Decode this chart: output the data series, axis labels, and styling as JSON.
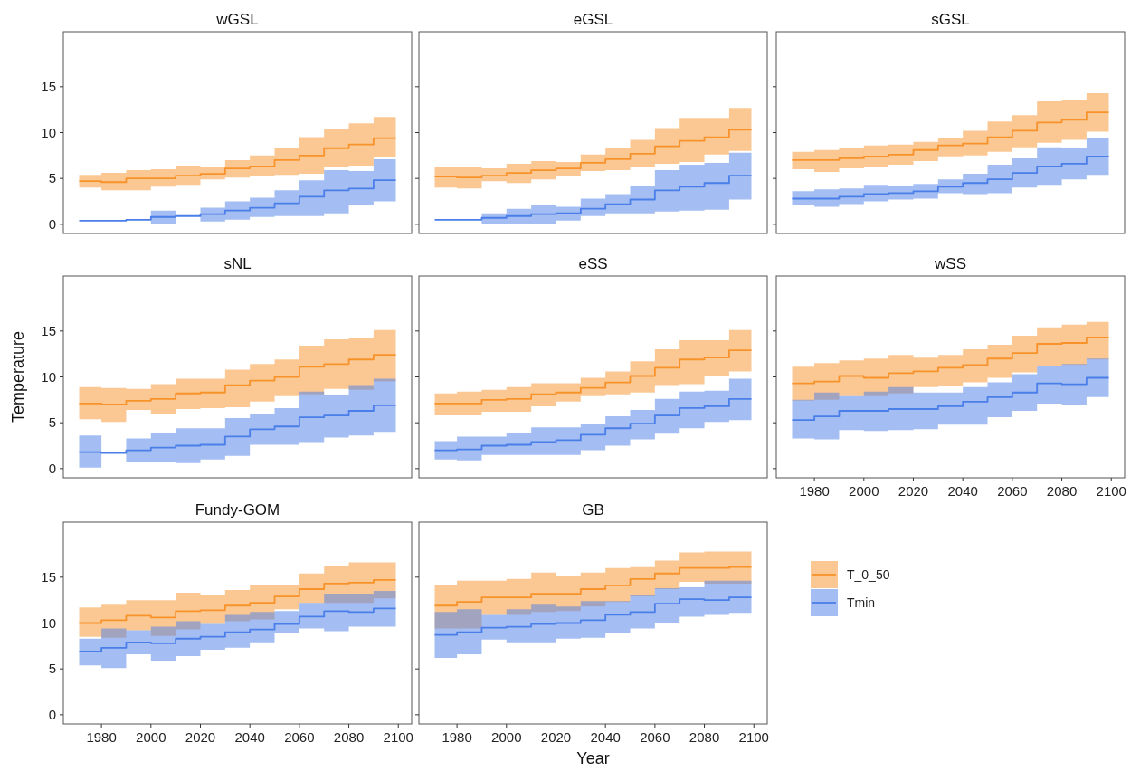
{
  "chart_data": [
    {
      "type": "step",
      "title": "wGSL",
      "legend": "bottom right",
      "x": [
        1971,
        1980,
        1990,
        2000,
        2010,
        2020,
        2030,
        2040,
        2050,
        2060,
        2070,
        2080,
        2090,
        2099
      ],
      "xlim": [
        1964.6,
        2105.4
      ],
      "ylim": [
        -1,
        21
      ],
      "xticks": [
        1980,
        2000,
        2020,
        2040,
        2060,
        2080,
        2100
      ],
      "yticks": [
        0,
        5,
        10,
        15
      ],
      "tick_labels": "y",
      "series": [
        {
          "name": "T_0_50",
          "color": "#f8922a",
          "values": [
            4.7,
            4.6,
            5.0,
            5.0,
            5.3,
            5.5,
            6.1,
            6.3,
            7.0,
            7.5,
            8.3,
            8.7,
            9.4,
            9.4
          ],
          "lower": [
            4.0,
            3.7,
            3.7,
            4.1,
            4.3,
            4.9,
            5.1,
            5.3,
            5.4,
            5.5,
            6.3,
            6.4,
            7.3,
            7.3
          ],
          "upper": [
            5.4,
            5.6,
            5.9,
            6.0,
            6.4,
            6.2,
            7.0,
            7.5,
            8.3,
            9.5,
            10.4,
            11.0,
            11.7,
            11.7
          ]
        },
        {
          "name": "Tmin",
          "color": "#4a7ee8",
          "values": [
            0.4,
            0.4,
            0.5,
            0.8,
            0.9,
            1.1,
            1.5,
            1.8,
            2.3,
            3.0,
            3.7,
            3.9,
            4.8,
            4.8
          ],
          "lower": [
            0.4,
            0.4,
            0.5,
            0.0,
            0.9,
            0.3,
            0.5,
            0.8,
            0.9,
            0.9,
            1.2,
            2.1,
            2.5,
            2.5
          ],
          "upper": [
            0.4,
            0.4,
            0.5,
            1.5,
            0.9,
            1.8,
            2.5,
            2.9,
            3.7,
            4.8,
            5.9,
            5.8,
            7.1,
            7.1
          ]
        }
      ]
    },
    {
      "type": "step",
      "title": "eGSL",
      "x": [
        1971,
        1980,
        1990,
        2000,
        2010,
        2020,
        2030,
        2040,
        2050,
        2060,
        2070,
        2080,
        2090,
        2099
      ],
      "xlim": [
        1964.6,
        2105.4
      ],
      "ylim": [
        -1,
        21
      ],
      "xticks": [
        1980,
        2000,
        2020,
        2040,
        2060,
        2080,
        2100
      ],
      "yticks": [
        0,
        5,
        10,
        15
      ],
      "tick_labels": false,
      "series": [
        {
          "color": "#f8922a",
          "values": [
            5.2,
            5.1,
            5.3,
            5.6,
            5.9,
            6.1,
            6.7,
            7.1,
            7.7,
            8.5,
            9.1,
            9.5,
            10.3,
            10.3
          ],
          "lower": [
            4.0,
            3.9,
            4.7,
            4.5,
            4.9,
            5.3,
            5.8,
            5.9,
            6.2,
            6.6,
            6.8,
            7.6,
            8.0,
            8.0
          ],
          "upper": [
            6.3,
            6.2,
            6.1,
            6.6,
            6.9,
            6.8,
            7.6,
            8.3,
            9.2,
            10.5,
            11.6,
            11.6,
            12.7,
            12.7
          ]
        },
        {
          "color": "#4a7ee8",
          "values": [
            0.5,
            0.5,
            0.7,
            0.9,
            1.1,
            1.2,
            1.7,
            2.2,
            2.7,
            3.7,
            4.1,
            4.5,
            5.3,
            5.3
          ],
          "lower": [
            0.5,
            0.5,
            0.0,
            0.0,
            0.0,
            0.4,
            0.9,
            1.2,
            1.2,
            1.4,
            1.5,
            1.6,
            2.7,
            2.7
          ],
          "upper": [
            0.5,
            0.5,
            1.2,
            1.7,
            2.1,
            1.9,
            2.8,
            3.3,
            4.2,
            5.9,
            6.5,
            6.7,
            7.8,
            7.8
          ]
        }
      ]
    },
    {
      "type": "step",
      "title": "sGSL",
      "x": [
        1971,
        1980,
        1990,
        2000,
        2010,
        2020,
        2030,
        2040,
        2050,
        2060,
        2070,
        2080,
        2090,
        2099
      ],
      "xlim": [
        1964.6,
        2105.4
      ],
      "ylim": [
        -1,
        21
      ],
      "xticks": [
        1980,
        2000,
        2020,
        2040,
        2060,
        2080,
        2100
      ],
      "yticks": [
        0,
        5,
        10,
        15
      ],
      "tick_labels": false,
      "series": [
        {
          "color": "#f8922a",
          "values": [
            7.0,
            7.0,
            7.2,
            7.4,
            7.6,
            8.1,
            8.6,
            8.8,
            9.5,
            10.2,
            11.1,
            11.4,
            12.2,
            12.2
          ],
          "lower": [
            6.0,
            5.7,
            6.1,
            6.3,
            6.5,
            6.9,
            7.4,
            7.5,
            7.9,
            8.4,
            8.9,
            9.2,
            10.1,
            10.1
          ],
          "upper": [
            7.9,
            8.1,
            8.3,
            8.6,
            8.7,
            9.0,
            9.4,
            10.2,
            11.2,
            11.9,
            13.4,
            13.5,
            14.3,
            14.3
          ]
        },
        {
          "color": "#4a7ee8",
          "values": [
            2.8,
            2.8,
            3.0,
            3.3,
            3.4,
            3.6,
            4.1,
            4.5,
            4.9,
            5.6,
            6.3,
            6.6,
            7.4,
            7.4
          ],
          "lower": [
            2.1,
            1.9,
            2.2,
            2.5,
            2.7,
            2.8,
            3.4,
            3.3,
            3.4,
            4.0,
            4.3,
            4.9,
            5.4,
            5.4
          ],
          "upper": [
            3.6,
            3.8,
            3.9,
            4.3,
            4.2,
            4.4,
            4.9,
            5.5,
            6.5,
            7.2,
            8.4,
            8.3,
            9.4,
            9.4
          ]
        }
      ]
    },
    {
      "type": "step",
      "title": "sNL",
      "ylabel": "Temperature",
      "x": [
        1971,
        1980,
        1990,
        2000,
        2010,
        2020,
        2030,
        2040,
        2050,
        2060,
        2070,
        2080,
        2090,
        2099
      ],
      "xlim": [
        1964.6,
        2105.4
      ],
      "ylim": [
        -1,
        21
      ],
      "xticks": [
        1980,
        2000,
        2020,
        2040,
        2060,
        2080,
        2100
      ],
      "yticks": [
        0,
        5,
        10,
        15
      ],
      "tick_labels": "y",
      "series": [
        {
          "color": "#f8922a",
          "values": [
            7.1,
            7.0,
            7.4,
            7.6,
            8.2,
            8.3,
            9.1,
            9.6,
            10.0,
            11.1,
            11.4,
            11.9,
            12.4,
            12.4
          ],
          "lower": [
            5.4,
            5.1,
            6.4,
            5.9,
            6.5,
            6.6,
            6.7,
            7.3,
            7.9,
            8.1,
            8.7,
            8.6,
            9.5,
            9.5
          ],
          "upper": [
            8.9,
            8.8,
            8.7,
            9.2,
            9.8,
            9.8,
            10.8,
            11.4,
            11.9,
            13.4,
            14.1,
            14.3,
            15.1,
            15.1
          ]
        },
        {
          "color": "#4a7ee8",
          "values": [
            1.8,
            1.7,
            2.0,
            2.3,
            2.5,
            2.6,
            3.5,
            4.3,
            4.6,
            5.6,
            5.8,
            6.3,
            6.9,
            6.9
          ],
          "lower": [
            0.1,
            1.7,
            0.7,
            0.7,
            0.6,
            1.0,
            1.4,
            2.6,
            2.6,
            2.9,
            3.4,
            3.6,
            4.0,
            4.0
          ],
          "upper": [
            3.6,
            1.7,
            3.3,
            3.9,
            4.4,
            4.4,
            5.5,
            5.9,
            6.6,
            8.4,
            8.0,
            9.1,
            9.8,
            9.8
          ]
        }
      ]
    },
    {
      "type": "step",
      "title": "eSS",
      "x": [
        1971,
        1980,
        1990,
        2000,
        2010,
        2020,
        2030,
        2040,
        2050,
        2060,
        2070,
        2080,
        2090,
        2099
      ],
      "xlim": [
        1964.6,
        2105.4
      ],
      "ylim": [
        -1,
        21
      ],
      "xticks": [
        1980,
        2000,
        2020,
        2040,
        2060,
        2080,
        2100
      ],
      "yticks": [
        0,
        5,
        10,
        15
      ],
      "tick_labels": false,
      "series": [
        {
          "color": "#f8922a",
          "values": [
            7.1,
            7.1,
            7.5,
            7.6,
            8.1,
            8.3,
            8.8,
            9.4,
            10.1,
            11.0,
            11.9,
            12.1,
            12.9,
            12.9
          ],
          "lower": [
            5.8,
            5.8,
            6.2,
            6.2,
            6.8,
            7.3,
            7.9,
            8.1,
            8.3,
            9.1,
            9.2,
            10.1,
            10.6,
            10.6
          ],
          "upper": [
            8.2,
            8.4,
            8.6,
            8.9,
            9.3,
            9.3,
            9.9,
            10.6,
            11.7,
            13.0,
            14.0,
            14.0,
            15.1,
            15.1
          ]
        },
        {
          "color": "#4a7ee8",
          "values": [
            2.0,
            2.1,
            2.5,
            2.6,
            2.9,
            3.1,
            3.7,
            4.4,
            4.9,
            5.8,
            6.6,
            6.8,
            7.6,
            7.6
          ],
          "lower": [
            1.0,
            0.9,
            1.5,
            1.5,
            1.5,
            1.5,
            2.0,
            2.5,
            3.2,
            3.8,
            4.4,
            5.1,
            5.3,
            5.3
          ],
          "upper": [
            3.0,
            3.5,
            3.5,
            3.9,
            4.5,
            4.5,
            4.9,
            5.7,
            6.4,
            7.6,
            8.4,
            8.5,
            9.8,
            9.8
          ]
        }
      ]
    },
    {
      "type": "step",
      "title": "wSS",
      "x": [
        1971,
        1980,
        1990,
        2000,
        2010,
        2020,
        2030,
        2040,
        2050,
        2060,
        2070,
        2080,
        2090,
        2099
      ],
      "xlim": [
        1964.6,
        2105.4
      ],
      "ylim": [
        -1,
        21
      ],
      "xticks": [
        1980,
        2000,
        2020,
        2040,
        2060,
        2080,
        2100
      ],
      "yticks": [
        0,
        5,
        10,
        15
      ],
      "tick_labels": "x",
      "series": [
        {
          "color": "#f8922a",
          "values": [
            9.3,
            9.5,
            10.1,
            9.9,
            10.4,
            10.6,
            11.0,
            11.3,
            12.0,
            12.6,
            13.6,
            13.7,
            14.3,
            14.3
          ],
          "lower": [
            7.4,
            7.5,
            7.9,
            7.9,
            8.2,
            8.9,
            9.0,
            9.4,
            9.9,
            10.5,
            11.2,
            11.3,
            11.9,
            11.9
          ],
          "upper": [
            11.1,
            11.5,
            11.8,
            12.0,
            12.4,
            12.1,
            12.4,
            13.0,
            13.5,
            14.5,
            15.4,
            15.7,
            16.0,
            16.0
          ]
        },
        {
          "color": "#4a7ee8",
          "values": [
            5.3,
            5.7,
            6.3,
            6.3,
            6.5,
            6.5,
            6.8,
            7.3,
            7.8,
            8.3,
            9.3,
            9.2,
            9.9,
            9.9
          ],
          "lower": [
            3.3,
            3.2,
            4.2,
            4.1,
            4.2,
            4.3,
            4.8,
            4.8,
            5.6,
            6.3,
            7.1,
            6.9,
            7.8,
            7.8
          ],
          "upper": [
            7.5,
            8.3,
            7.9,
            8.4,
            8.9,
            8.3,
            8.3,
            8.9,
            9.4,
            10.3,
            11.2,
            11.4,
            12.0,
            12.0
          ]
        }
      ]
    },
    {
      "type": "step",
      "title": "Fundy-GOM",
      "x": [
        1971,
        1980,
        1990,
        2000,
        2010,
        2020,
        2030,
        2040,
        2050,
        2060,
        2070,
        2080,
        2090,
        2099
      ],
      "xlim": [
        1964.6,
        2105.4
      ],
      "ylim": [
        -1,
        21
      ],
      "xticks": [
        1980,
        2000,
        2020,
        2040,
        2060,
        2080,
        2100
      ],
      "yticks": [
        0,
        5,
        10,
        15
      ],
      "series": [
        {
          "color": "#f8922a",
          "values": [
            10.0,
            10.3,
            10.8,
            10.6,
            11.3,
            11.4,
            11.9,
            12.2,
            12.9,
            13.7,
            14.3,
            14.4,
            14.7,
            14.7
          ],
          "lower": [
            8.5,
            8.4,
            9.2,
            8.6,
            9.3,
            9.9,
            10.2,
            10.4,
            11.5,
            12.2,
            12.2,
            12.2,
            12.7,
            12.7
          ],
          "upper": [
            11.7,
            12.0,
            12.5,
            12.5,
            13.3,
            13.0,
            13.6,
            14.1,
            14.2,
            15.4,
            16.2,
            16.6,
            16.6,
            16.6
          ]
        },
        {
          "color": "#4a7ee8",
          "values": [
            6.9,
            7.3,
            7.9,
            7.8,
            8.3,
            8.5,
            9.0,
            9.3,
            9.9,
            10.7,
            11.3,
            11.2,
            11.6,
            11.6
          ],
          "lower": [
            5.4,
            5.1,
            6.6,
            5.9,
            6.4,
            7.1,
            7.3,
            7.9,
            8.9,
            9.4,
            9.1,
            9.6,
            9.6,
            9.6
          ],
          "upper": [
            8.3,
            9.4,
            9.2,
            9.6,
            10.2,
            9.9,
            10.9,
            11.2,
            11.3,
            12.2,
            13.2,
            13.2,
            13.5,
            13.5
          ]
        }
      ]
    },
    {
      "type": "step",
      "title": "GB",
      "xlabel": "Year",
      "x": [
        1971,
        1980,
        1990,
        2000,
        2010,
        2020,
        2030,
        2040,
        2050,
        2060,
        2070,
        2080,
        2090,
        2099
      ],
      "xlim": [
        1964.6,
        2105.4
      ],
      "ylim": [
        -1,
        21
      ],
      "xticks": [
        1980,
        2000,
        2020,
        2040,
        2060,
        2080,
        2100
      ],
      "yticks": [
        0,
        5,
        10,
        15
      ],
      "tick_labels": "x",
      "series": [
        {
          "color": "#f8922a",
          "values": [
            11.9,
            12.3,
            12.8,
            12.8,
            13.2,
            13.2,
            13.7,
            14.1,
            14.8,
            15.4,
            16.0,
            16.0,
            16.1,
            16.1
          ],
          "lower": [
            9.4,
            9.4,
            10.9,
            10.9,
            11.2,
            11.3,
            11.8,
            12.3,
            12.9,
            13.7,
            14.5,
            14.3,
            14.3,
            14.3
          ],
          "upper": [
            14.2,
            14.6,
            14.6,
            14.8,
            15.5,
            15.1,
            15.5,
            16.0,
            16.1,
            16.8,
            17.7,
            17.8,
            17.8,
            17.8
          ]
        },
        {
          "color": "#4a7ee8",
          "values": [
            8.7,
            9.0,
            9.5,
            9.6,
            9.9,
            10.0,
            10.3,
            10.9,
            11.2,
            12.1,
            12.6,
            12.5,
            12.8,
            12.8
          ],
          "lower": [
            6.2,
            6.6,
            8.2,
            7.9,
            7.9,
            8.3,
            8.4,
            8.9,
            9.4,
            10.0,
            10.7,
            10.9,
            11.1,
            11.1
          ],
          "upper": [
            11.2,
            11.5,
            10.9,
            11.5,
            12.0,
            11.8,
            12.4,
            12.4,
            13.1,
            13.8,
            13.9,
            14.6,
            14.6,
            14.6
          ]
        }
      ]
    }
  ]
}
